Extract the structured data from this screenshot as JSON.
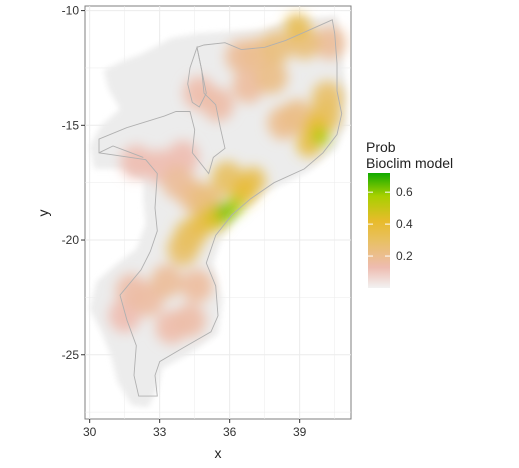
{
  "chart_data": {
    "type": "heatmap",
    "title": "",
    "xlabel": "x",
    "ylabel": "y",
    "xlim": [
      29.8,
      41.2
    ],
    "ylim": [
      -27.8,
      -9.8
    ],
    "x_ticks": [
      30,
      33,
      36,
      39
    ],
    "x_tick_labels": [
      "30",
      "33",
      "36",
      "39"
    ],
    "y_ticks": [
      -10,
      -15,
      -20,
      -25
    ],
    "y_tick_labels": [
      "-10",
      "-15",
      "-20",
      "-25"
    ],
    "grid": true,
    "legend": {
      "title_line1": "Prob",
      "title_line2": "Bioclim model",
      "placement": "right",
      "range": [
        0.0,
        0.72
      ],
      "ticks": [
        0.2,
        0.4,
        0.6
      ],
      "tick_labels": [
        "0.2",
        "0.4",
        "0.6"
      ],
      "colors": [
        "#f2f2f2",
        "#eebcb0",
        "#e8c060",
        "#e8bb2c",
        "#a8d000",
        "#11aa00"
      ]
    },
    "colors": {
      "background_region": "#ececec",
      "border_lines": "#b0b0b0",
      "panel_border": "#7f7f7f",
      "grid": "#ebebeb"
    },
    "probability_patches": [
      {
        "x": 35.8,
        "y": -18.8,
        "value": 0.62
      },
      {
        "x": 36.2,
        "y": -18.5,
        "value": 0.55
      },
      {
        "x": 35.4,
        "y": -19.0,
        "value": 0.45
      },
      {
        "x": 36.6,
        "y": -17.9,
        "value": 0.4
      },
      {
        "x": 37.0,
        "y": -17.4,
        "value": 0.33
      },
      {
        "x": 35.9,
        "y": -17.3,
        "value": 0.3
      },
      {
        "x": 34.8,
        "y": -19.3,
        "value": 0.35
      },
      {
        "x": 34.3,
        "y": -19.8,
        "value": 0.3
      },
      {
        "x": 34.0,
        "y": -20.4,
        "value": 0.28
      },
      {
        "x": 35.0,
        "y": -18.3,
        "value": 0.24
      },
      {
        "x": 34.5,
        "y": -18.1,
        "value": 0.2
      },
      {
        "x": 33.8,
        "y": -17.5,
        "value": 0.18
      },
      {
        "x": 39.9,
        "y": -15.5,
        "value": 0.55
      },
      {
        "x": 39.7,
        "y": -15.1,
        "value": 0.4
      },
      {
        "x": 39.4,
        "y": -15.8,
        "value": 0.35
      },
      {
        "x": 40.1,
        "y": -14.6,
        "value": 0.3
      },
      {
        "x": 40.2,
        "y": -13.8,
        "value": 0.28
      },
      {
        "x": 38.9,
        "y": -14.6,
        "value": 0.22
      },
      {
        "x": 38.3,
        "y": -14.9,
        "value": 0.2
      },
      {
        "x": 38.9,
        "y": -10.7,
        "value": 0.32
      },
      {
        "x": 39.2,
        "y": -11.4,
        "value": 0.25
      },
      {
        "x": 38.0,
        "y": -11.6,
        "value": 0.24
      },
      {
        "x": 37.2,
        "y": -11.9,
        "value": 0.2
      },
      {
        "x": 36.5,
        "y": -12.0,
        "value": 0.18
      },
      {
        "x": 37.8,
        "y": -12.9,
        "value": 0.22
      },
      {
        "x": 36.8,
        "y": -13.3,
        "value": 0.17
      },
      {
        "x": 40.3,
        "y": -11.4,
        "value": 0.18
      },
      {
        "x": 35.5,
        "y": -14.1,
        "value": 0.15
      },
      {
        "x": 34.7,
        "y": -13.6,
        "value": 0.14
      },
      {
        "x": 33.3,
        "y": -21.8,
        "value": 0.18
      },
      {
        "x": 32.5,
        "y": -22.6,
        "value": 0.16
      },
      {
        "x": 31.8,
        "y": -22.2,
        "value": 0.15
      },
      {
        "x": 34.6,
        "y": -22.0,
        "value": 0.17
      },
      {
        "x": 34.3,
        "y": -23.5,
        "value": 0.15
      },
      {
        "x": 33.5,
        "y": -23.8,
        "value": 0.14
      },
      {
        "x": 31.5,
        "y": -23.3,
        "value": 0.13
      },
      {
        "x": 32.0,
        "y": -16.6,
        "value": 0.13
      },
      {
        "x": 33.0,
        "y": -16.8,
        "value": 0.13
      },
      {
        "x": 34.0,
        "y": -16.4,
        "value": 0.13
      }
    ]
  }
}
